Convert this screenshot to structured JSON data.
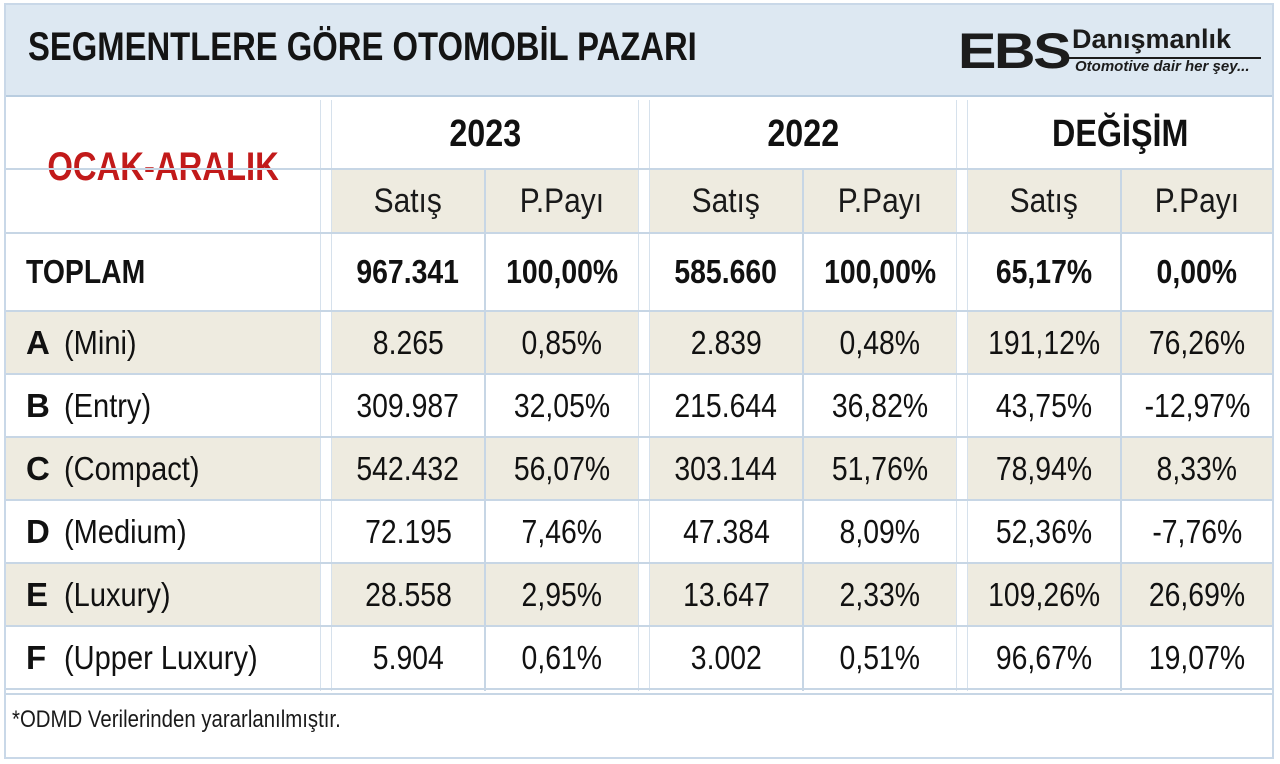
{
  "title": "SEGMENTLERE GÖRE OTOMOBİL PAZARI",
  "logo": {
    "brand": "EBS",
    "name": "Danışmanlık",
    "tagline": "Otomotive dair her şey..."
  },
  "period": "OCAK-ARALIK",
  "groups": [
    "2023",
    "2022",
    "DEĞİŞİM"
  ],
  "sub_headers": [
    "Satış",
    "P.Payı",
    "Satış",
    "P.Payı",
    "Satış",
    "P.Payı"
  ],
  "total": {
    "label": "TOPLAM",
    "values": [
      "967.341",
      "100,00%",
      "585.660",
      "100,00%",
      "65,17%",
      "0,00%"
    ]
  },
  "rows": [
    {
      "code": "A",
      "name": "(Mini)",
      "values": [
        "8.265",
        "0,85%",
        "2.839",
        "0,48%",
        "191,12%",
        "76,26%"
      ]
    },
    {
      "code": "B",
      "name": "(Entry)",
      "values": [
        "309.987",
        "32,05%",
        "215.644",
        "36,82%",
        "43,75%",
        "-12,97%"
      ]
    },
    {
      "code": "C",
      "name": "(Compact)",
      "values": [
        "542.432",
        "56,07%",
        "303.144",
        "51,76%",
        "78,94%",
        "8,33%"
      ]
    },
    {
      "code": "D",
      "name": "(Medium)",
      "values": [
        "72.195",
        "7,46%",
        "47.384",
        "8,09%",
        "52,36%",
        "-7,76%"
      ]
    },
    {
      "code": "E",
      "name": "(Luxury)",
      "values": [
        "28.558",
        "2,95%",
        "13.647",
        "2,33%",
        "109,26%",
        "26,69%"
      ]
    },
    {
      "code": "F",
      "name": "(Upper Luxury)",
      "values": [
        "5.904",
        "0,61%",
        "3.002",
        "0,51%",
        "96,67%",
        "19,07%"
      ]
    }
  ],
  "footnote": "*ODMD Verilerinden yararlanılmıştır."
}
